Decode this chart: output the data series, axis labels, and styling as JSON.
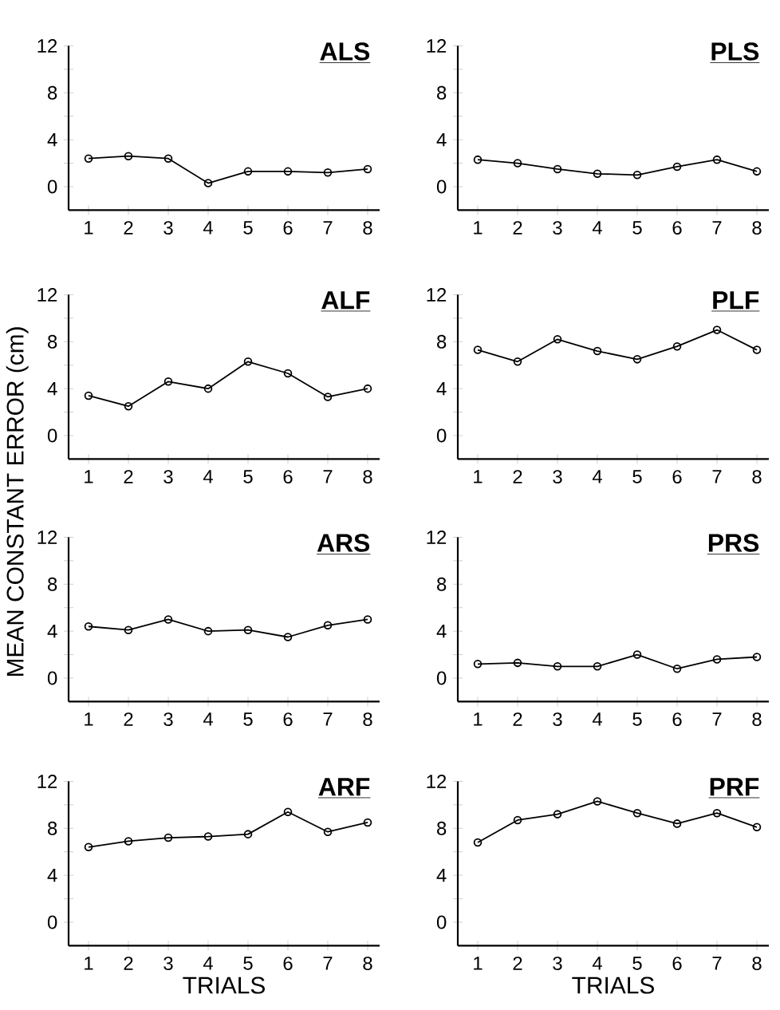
{
  "chart_data": [
    {
      "type": "line",
      "title": "ALS",
      "x": [
        1,
        2,
        3,
        4,
        5,
        6,
        7,
        8
      ],
      "values": [
        2.4,
        2.6,
        2.4,
        0.3,
        1.3,
        1.3,
        1.2,
        1.5
      ],
      "color": "#000000",
      "marker": "circle",
      "line_style": "solid",
      "xlim": [
        0.5,
        8.3
      ],
      "ylim": [
        -2,
        12
      ],
      "xticks": [
        1,
        2,
        3,
        4,
        5,
        6,
        7,
        8
      ],
      "yticks": [
        0,
        {
          "value": 2,
          "label": null
        },
        4,
        {
          "value": 6,
          "label": null
        },
        8,
        {
          "value": 10,
          "label": null
        },
        12
      ]
    },
    {
      "type": "line",
      "title": "PLS",
      "x": [
        1,
        2,
        3,
        4,
        5,
        6,
        7,
        8
      ],
      "values": [
        2.3,
        2.0,
        1.5,
        1.1,
        1.0,
        1.7,
        2.3,
        1.3
      ],
      "color": "#000000",
      "marker": "circle",
      "line_style": "solid",
      "xlim": [
        0.5,
        8.3
      ],
      "ylim": [
        -2,
        12
      ],
      "xticks": [
        1,
        2,
        3,
        4,
        5,
        6,
        7,
        8
      ],
      "yticks": [
        0,
        {
          "value": 2,
          "label": null
        },
        4,
        {
          "value": 6,
          "label": null
        },
        8,
        {
          "value": 10,
          "label": null
        },
        12
      ]
    },
    {
      "type": "line",
      "title": "ALF",
      "ylabel": "MEAN CONSTANT ERROR (cm)",
      "x": [
        1,
        2,
        3,
        4,
        5,
        6,
        7,
        8
      ],
      "values": [
        3.4,
        2.5,
        4.6,
        4.0,
        6.3,
        5.3,
        3.3,
        4.0
      ],
      "color": "#000000",
      "marker": "circle",
      "line_style": "solid",
      "xlim": [
        0.5,
        8.3
      ],
      "ylim": [
        -2,
        12
      ],
      "xticks": [
        1,
        2,
        3,
        4,
        5,
        6,
        7,
        8
      ],
      "yticks": [
        0,
        {
          "value": 2,
          "label": null
        },
        4,
        {
          "value": 6,
          "label": null
        },
        8,
        {
          "value": 10,
          "label": null
        },
        12
      ]
    },
    {
      "type": "line",
      "title": "PLF",
      "x": [
        1,
        2,
        3,
        4,
        5,
        6,
        7,
        8
      ],
      "values": [
        7.3,
        6.3,
        8.2,
        7.2,
        6.5,
        7.6,
        9.0,
        7.3
      ],
      "color": "#000000",
      "marker": "circle",
      "line_style": "solid",
      "xlim": [
        0.5,
        8.3
      ],
      "ylim": [
        -2,
        12
      ],
      "xticks": [
        1,
        2,
        3,
        4,
        5,
        6,
        7,
        8
      ],
      "yticks": [
        0,
        {
          "value": 2,
          "label": null
        },
        4,
        {
          "value": 6,
          "label": null
        },
        8,
        {
          "value": 10,
          "label": null
        },
        12
      ]
    },
    {
      "type": "line",
      "title": "ARS",
      "x": [
        1,
        2,
        3,
        4,
        5,
        6,
        7,
        8
      ],
      "values": [
        4.4,
        4.1,
        5.0,
        4.0,
        4.1,
        3.5,
        4.5,
        5.0
      ],
      "color": "#000000",
      "marker": "circle",
      "line_style": "solid",
      "xlim": [
        0.5,
        8.3
      ],
      "ylim": [
        -2,
        12
      ],
      "xticks": [
        1,
        2,
        3,
        4,
        5,
        6,
        7,
        8
      ],
      "yticks": [
        0,
        {
          "value": 2,
          "label": null
        },
        4,
        {
          "value": 6,
          "label": null
        },
        8,
        {
          "value": 10,
          "label": null
        },
        12
      ]
    },
    {
      "type": "line",
      "title": "PRS",
      "x": [
        1,
        2,
        3,
        4,
        5,
        6,
        7,
        8
      ],
      "values": [
        1.2,
        1.3,
        1.0,
        1.0,
        2.0,
        0.8,
        1.6,
        1.8
      ],
      "color": "#000000",
      "marker": "circle",
      "line_style": "solid",
      "xlim": [
        0.5,
        8.3
      ],
      "ylim": [
        -2,
        12
      ],
      "xticks": [
        1,
        2,
        3,
        4,
        5,
        6,
        7,
        8
      ],
      "yticks": [
        0,
        {
          "value": 2,
          "label": null
        },
        4,
        {
          "value": 6,
          "label": null
        },
        8,
        {
          "value": 10,
          "label": null
        },
        12
      ]
    },
    {
      "type": "line",
      "title": "ARF",
      "xlabel": "TRIALS",
      "x": [
        1,
        2,
        3,
        4,
        5,
        6,
        7,
        8
      ],
      "values": [
        6.4,
        6.9,
        7.2,
        7.3,
        7.5,
        9.4,
        7.7,
        8.5
      ],
      "color": "#000000",
      "marker": "circle",
      "line_style": "solid",
      "xlim": [
        0.5,
        8.3
      ],
      "ylim": [
        -2,
        12
      ],
      "xticks": [
        1,
        2,
        3,
        4,
        5,
        6,
        7,
        8
      ],
      "yticks": [
        0,
        {
          "value": 2,
          "label": null
        },
        4,
        {
          "value": 6,
          "label": null
        },
        8,
        {
          "value": 10,
          "label": null
        },
        12
      ]
    },
    {
      "type": "line",
      "title": "PRF",
      "xlabel": "TRIALS",
      "x": [
        1,
        2,
        3,
        4,
        5,
        6,
        7,
        8
      ],
      "values": [
        6.8,
        8.7,
        9.2,
        10.3,
        9.3,
        8.4,
        9.3,
        8.1
      ],
      "color": "#000000",
      "marker": "circle",
      "line_style": "solid",
      "xlim": [
        0.5,
        8.3
      ],
      "ylim": [
        -2,
        12
      ],
      "xticks": [
        1,
        2,
        3,
        4,
        5,
        6,
        7,
        8
      ],
      "yticks": [
        0,
        {
          "value": 2,
          "label": null
        },
        4,
        {
          "value": 6,
          "label": null
        },
        8,
        {
          "value": 10,
          "label": null
        },
        12
      ]
    }
  ]
}
